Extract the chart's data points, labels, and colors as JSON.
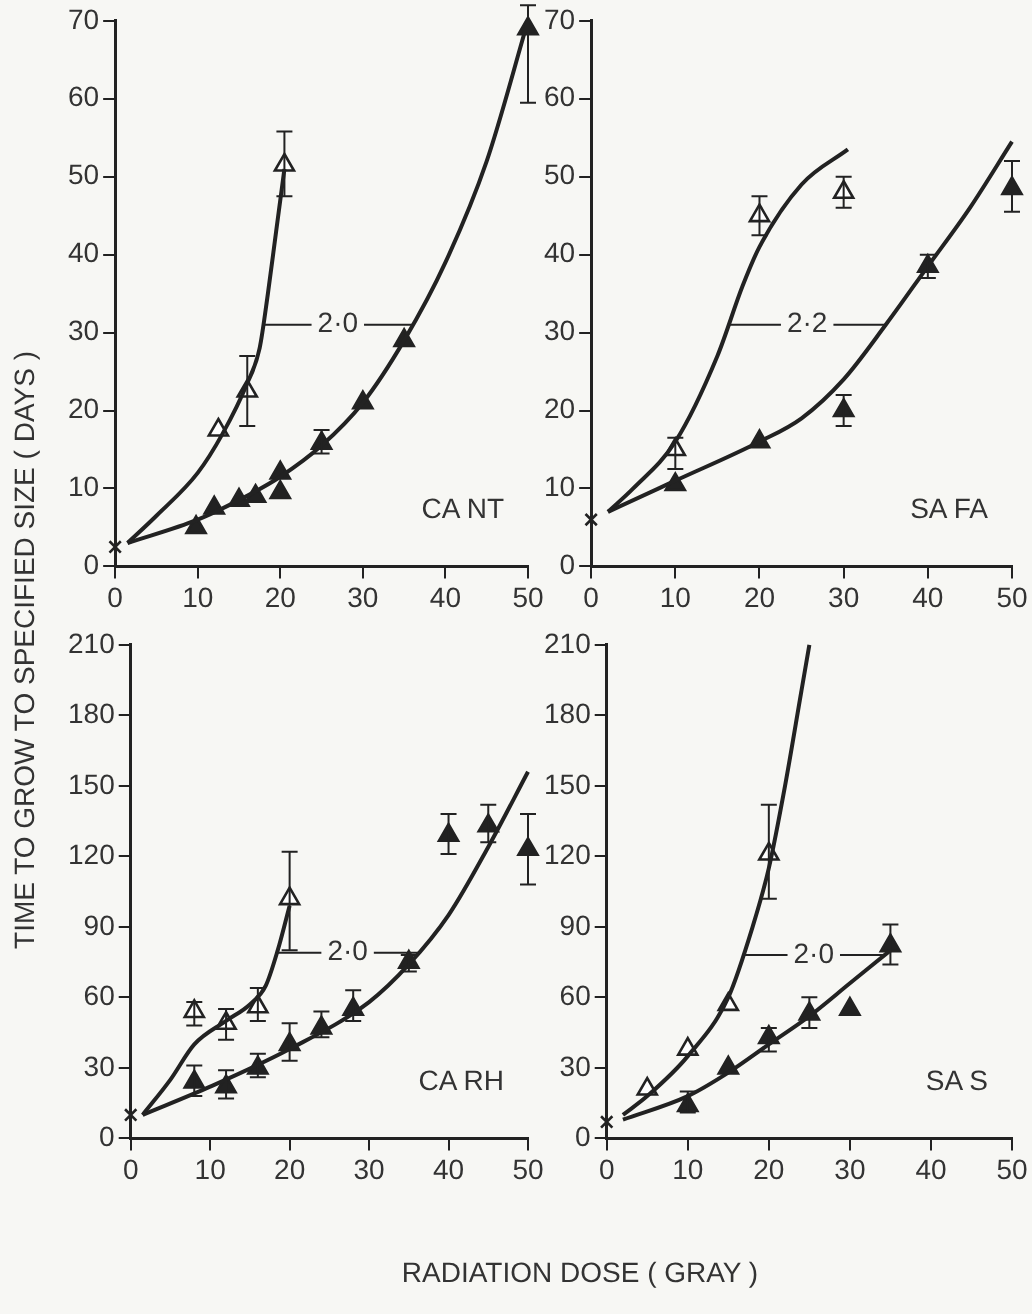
{
  "chart_data": [
    {
      "type": "scatter",
      "ylabel": "TIME TO GROW TO SPECIFIED SIZE ( DAYS )",
      "xlim": [
        0,
        50
      ],
      "xticks": [
        0,
        10,
        20,
        30,
        40,
        50
      ],
      "ylim": [
        0,
        70
      ],
      "yticks": [
        0,
        10,
        20,
        30,
        40,
        50,
        60,
        70
      ],
      "grid": false,
      "legend": false,
      "annotations": [
        "2·0",
        "CA NT"
      ],
      "ref_lines": [
        {
          "axis": "y",
          "value": 31
        }
      ],
      "series": [
        {
          "type": "line",
          "color": "#222222",
          "marker": "none",
          "x": [
            1.5,
            5,
            10,
            13,
            16,
            17.5,
            18.5,
            19.5,
            20.5
          ],
          "values": [
            3,
            6.5,
            12,
            17,
            23.5,
            28,
            35,
            43,
            51
          ]
        },
        {
          "type": "line",
          "color": "#222222",
          "marker": "none",
          "x": [
            1.5,
            10,
            15,
            20,
            25,
            30,
            35,
            40,
            45,
            50
          ],
          "values": [
            3,
            6,
            8.5,
            11.5,
            15.5,
            21,
            29,
            39,
            52,
            70
          ]
        },
        {
          "type": "scatter",
          "color": "#ffffff",
          "marker": "triangle",
          "x": [
            12.5,
            16,
            20.5
          ],
          "values": [
            17.5,
            22.5,
            51.5
          ],
          "errors": [
            null,
            [
              18,
              27
            ],
            [
              47.5,
              55.8
            ]
          ]
        },
        {
          "type": "scatter",
          "color": "#222222",
          "marker": "triangle",
          "x": [
            9.8,
            12,
            15,
            17,
            20,
            20,
            25,
            30,
            35,
            50
          ],
          "values": [
            5,
            7.5,
            8.5,
            9,
            12,
            9.5,
            15.8,
            21,
            29,
            69
          ],
          "errors": [
            null,
            null,
            null,
            null,
            null,
            null,
            [
              14.5,
              17.5
            ],
            null,
            null,
            [
              59.5,
              72
            ]
          ]
        },
        {
          "type": "scatter",
          "color": "#222222",
          "marker": "cross",
          "x": [
            0
          ],
          "values": [
            2.5
          ]
        }
      ]
    },
    {
      "type": "scatter",
      "xlim": [
        0,
        50
      ],
      "xticks": [
        0,
        10,
        20,
        30,
        40,
        50
      ],
      "ylim": [
        0,
        70
      ],
      "yticks": [
        0,
        10,
        20,
        30,
        40,
        50,
        60,
        70
      ],
      "grid": false,
      "legend": false,
      "annotations": [
        "2·2",
        "SA FA"
      ],
      "ref_lines": [
        {
          "axis": "y",
          "value": 31
        }
      ],
      "series": [
        {
          "type": "line",
          "color": "#222222",
          "marker": "none",
          "x": [
            2,
            5,
            10,
            15,
            18,
            20,
            25,
            30.5
          ],
          "values": [
            7,
            10,
            16,
            27,
            36,
            41,
            49,
            53.5
          ]
        },
        {
          "type": "line",
          "color": "#222222",
          "marker": "none",
          "x": [
            2,
            10,
            20,
            25,
            30,
            35,
            40,
            45,
            50
          ],
          "values": [
            7,
            11,
            16,
            19,
            24,
            31,
            38.5,
            46,
            54.5
          ]
        },
        {
          "type": "scatter",
          "color": "#ffffff",
          "marker": "triangle",
          "x": [
            10,
            20,
            30
          ],
          "values": [
            15,
            45,
            48
          ],
          "errors": [
            [
              12.5,
              16.5
            ],
            [
              42.5,
              47.5
            ],
            [
              46,
              50
            ]
          ]
        },
        {
          "type": "scatter",
          "color": "#222222",
          "marker": "triangle",
          "x": [
            10,
            20,
            30,
            40,
            50
          ],
          "values": [
            10.5,
            16,
            20,
            38.5,
            48.5
          ],
          "errors": [
            null,
            null,
            [
              18,
              22
            ],
            [
              37,
              40
            ],
            [
              45.5,
              52
            ]
          ]
        },
        {
          "type": "scatter",
          "color": "#222222",
          "marker": "cross",
          "x": [
            0
          ],
          "values": [
            6
          ]
        }
      ]
    },
    {
      "type": "scatter",
      "xlabel": "RADIATION DOSE ( GRAY )",
      "xlim": [
        0,
        50
      ],
      "xticks": [
        0,
        10,
        20,
        30,
        40,
        50
      ],
      "ylim": [
        0,
        210
      ],
      "yticks": [
        0,
        30,
        60,
        90,
        120,
        150,
        180,
        210
      ],
      "grid": false,
      "legend": false,
      "annotations": [
        "2·0",
        "CA RH"
      ],
      "ref_lines": [
        {
          "axis": "y",
          "value": 79
        }
      ],
      "series": [
        {
          "type": "line",
          "color": "#222222",
          "marker": "none",
          "x": [
            1.5,
            5,
            8,
            12,
            15,
            17,
            18.5,
            20
          ],
          "values": [
            10,
            25,
            40,
            50,
            57,
            65,
            80,
            99
          ]
        },
        {
          "type": "line",
          "color": "#222222",
          "marker": "none",
          "x": [
            1.5,
            10,
            20,
            30,
            35,
            40,
            45,
            50
          ],
          "values": [
            10,
            22,
            38,
            58,
            74,
            95,
            124,
            156
          ]
        },
        {
          "type": "scatter",
          "color": "#ffffff",
          "marker": "triangle",
          "x": [
            8,
            12,
            16,
            20
          ],
          "values": [
            54,
            49,
            56,
            102
          ],
          "errors": [
            [
              48,
              58
            ],
            [
              42,
              55
            ],
            [
              50,
              64
            ],
            [
              80,
              122
            ]
          ]
        },
        {
          "type": "scatter",
          "color": "#222222",
          "marker": "triangle",
          "x": [
            8,
            12,
            16,
            20,
            24,
            28,
            35,
            40,
            45,
            50
          ],
          "values": [
            24,
            22,
            30,
            40,
            47,
            55,
            75,
            129,
            133,
            123
          ],
          "errors": [
            [
              18,
              31
            ],
            [
              17,
              29
            ],
            [
              26,
              36
            ],
            [
              33,
              49
            ],
            [
              43,
              54
            ],
            [
              50,
              63
            ],
            [
              71,
              78
            ],
            [
              121,
              138
            ],
            [
              126,
              142
            ],
            [
              108,
              138
            ]
          ]
        },
        {
          "type": "scatter",
          "color": "#222222",
          "marker": "cross",
          "x": [
            0
          ],
          "values": [
            10
          ]
        }
      ]
    },
    {
      "type": "scatter",
      "xlim": [
        0,
        50
      ],
      "xticks": [
        0,
        10,
        20,
        30,
        40,
        50
      ],
      "ylim": [
        0,
        210
      ],
      "yticks": [
        0,
        30,
        60,
        90,
        120,
        150,
        180,
        210
      ],
      "grid": false,
      "legend": false,
      "annotations": [
        "2·0",
        "SA S"
      ],
      "ref_lines": [
        {
          "axis": "y",
          "value": 78
        }
      ],
      "series": [
        {
          "type": "line",
          "color": "#222222",
          "marker": "none",
          "x": [
            2,
            5,
            10,
            15,
            18,
            20,
            22,
            24,
            25
          ],
          "values": [
            10,
            18,
            35,
            60,
            90,
            115,
            150,
            190,
            210
          ]
        },
        {
          "type": "line",
          "color": "#222222",
          "marker": "none",
          "x": [
            2,
            10,
            15,
            20,
            25,
            30,
            35
          ],
          "values": [
            8,
            18,
            28,
            40,
            52,
            66,
            80
          ]
        },
        {
          "type": "scatter",
          "color": "#ffffff",
          "marker": "triangle",
          "x": [
            5,
            10,
            15,
            20
          ],
          "values": [
            21,
            38,
            57,
            121
          ],
          "errors": [
            null,
            null,
            null,
            [
              102,
              142
            ]
          ]
        },
        {
          "type": "scatter",
          "color": "#222222",
          "marker": "triangle",
          "x": [
            10,
            15,
            20,
            25,
            30,
            35
          ],
          "values": [
            14,
            30,
            43,
            53,
            55,
            82
          ],
          "errors": [
            [
              11,
              20
            ],
            null,
            [
              37,
              47
            ],
            [
              47,
              60
            ],
            null,
            [
              74,
              91
            ]
          ]
        },
        {
          "type": "scatter",
          "color": "#222222",
          "marker": "cross",
          "x": [
            0
          ],
          "values": [
            7
          ]
        }
      ]
    }
  ]
}
